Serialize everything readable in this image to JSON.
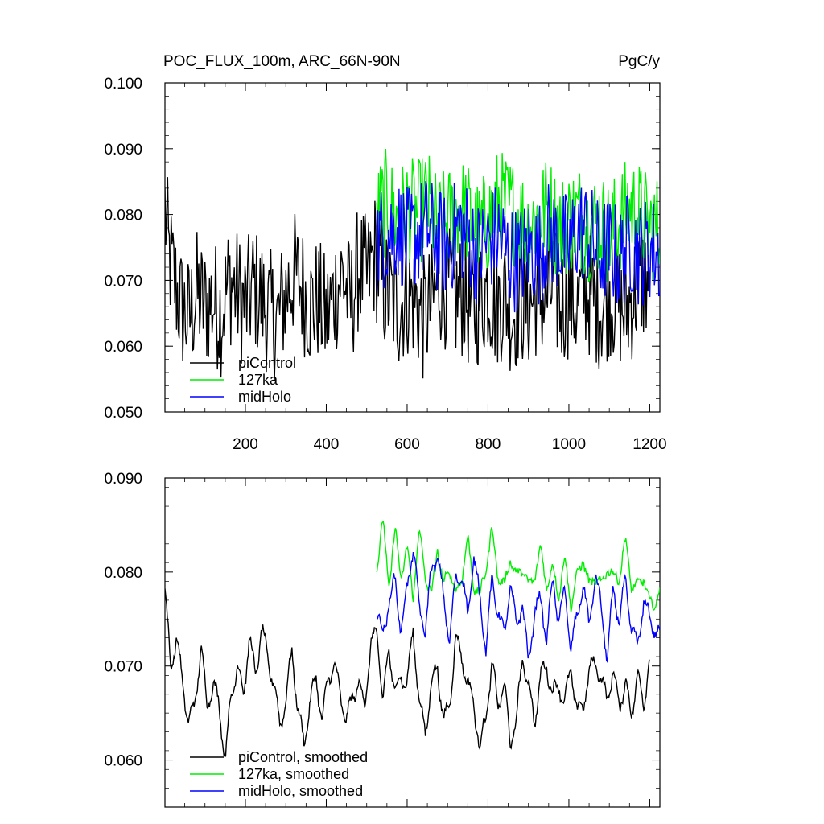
{
  "chart_data": [
    {
      "type": "line",
      "title": "POC_FLUX_100m, ARC_66N-90N",
      "units": "PgC/y",
      "xlim": [
        1,
        1225
      ],
      "ylim": [
        0.05,
        0.1
      ],
      "x_ticks": [
        200,
        400,
        600,
        800,
        1000,
        1200
      ],
      "y_ticks": [
        "0.050",
        "0.060",
        "0.070",
        "0.080",
        "0.090",
        "0.100"
      ],
      "legend": [
        "piControl",
        "127ka",
        "midHolo"
      ],
      "legend_position": "bottom-left",
      "series": [
        {
          "name": "piControl",
          "color": "#000000",
          "x_start": 1,
          "x_end": 1200,
          "x": [
            1,
            10,
            20,
            40,
            60,
            80,
            100,
            120,
            140,
            160,
            180,
            200,
            220,
            240,
            260,
            280,
            300,
            320,
            340,
            360,
            380,
            400,
            420,
            440,
            460,
            480,
            500,
            520,
            540,
            560,
            580,
            600,
            620,
            640,
            660,
            680,
            700,
            720,
            740,
            760,
            780,
            800,
            820,
            840,
            860,
            880,
            900,
            920,
            940,
            960,
            980,
            1000,
            1020,
            1040,
            1060,
            1080,
            1100,
            1120,
            1140,
            1160,
            1180,
            1200
          ],
          "values": [
            0.081,
            0.074,
            0.071,
            0.066,
            0.064,
            0.068,
            0.066,
            0.067,
            0.065,
            0.07,
            0.068,
            0.066,
            0.069,
            0.067,
            0.065,
            0.064,
            0.068,
            0.071,
            0.069,
            0.066,
            0.067,
            0.064,
            0.068,
            0.071,
            0.066,
            0.072,
            0.07,
            0.074,
            0.069,
            0.067,
            0.066,
            0.068,
            0.067,
            0.064,
            0.066,
            0.07,
            0.069,
            0.067,
            0.068,
            0.065,
            0.067,
            0.069,
            0.066,
            0.068,
            0.065,
            0.067,
            0.066,
            0.068,
            0.067,
            0.069,
            0.066,
            0.068,
            0.066,
            0.069,
            0.067,
            0.066,
            0.068,
            0.067,
            0.065,
            0.068,
            0.07,
            0.07
          ]
        },
        {
          "name": "127ka",
          "color": "#00ee00",
          "x_start": 525,
          "x_end": 1225,
          "x": [
            525,
            550,
            575,
            600,
            625,
            650,
            675,
            700,
            725,
            750,
            775,
            800,
            825,
            850,
            875,
            900,
            925,
            950,
            975,
            1000,
            1025,
            1050,
            1075,
            1100,
            1125,
            1150,
            1175,
            1200,
            1225
          ],
          "values": [
            0.08,
            0.082,
            0.079,
            0.081,
            0.08,
            0.082,
            0.078,
            0.079,
            0.081,
            0.08,
            0.077,
            0.079,
            0.082,
            0.081,
            0.08,
            0.078,
            0.08,
            0.081,
            0.078,
            0.079,
            0.08,
            0.078,
            0.079,
            0.077,
            0.079,
            0.081,
            0.08,
            0.078,
            0.078
          ]
        },
        {
          "name": "midHolo",
          "color": "#0000ff",
          "x_start": 525,
          "x_end": 1225,
          "x": [
            525,
            550,
            575,
            600,
            625,
            650,
            675,
            700,
            725,
            750,
            775,
            800,
            825,
            850,
            875,
            900,
            925,
            950,
            975,
            1000,
            1025,
            1050,
            1075,
            1100,
            1125,
            1150,
            1175,
            1200,
            1225
          ],
          "values": [
            0.076,
            0.077,
            0.078,
            0.076,
            0.077,
            0.078,
            0.076,
            0.075,
            0.078,
            0.077,
            0.074,
            0.076,
            0.077,
            0.074,
            0.073,
            0.075,
            0.074,
            0.077,
            0.076,
            0.075,
            0.078,
            0.077,
            0.074,
            0.075,
            0.073,
            0.076,
            0.074,
            0.075,
            0.074
          ]
        }
      ]
    },
    {
      "type": "line",
      "xlim": [
        1,
        1225
      ],
      "ylim": [
        0.055,
        0.09
      ],
      "y_ticks": [
        "0.060",
        "0.070",
        "0.080",
        "0.090"
      ],
      "legend": [
        "piControl, smoothed",
        "127ka, smoothed",
        "midHolo, smoothed"
      ],
      "legend_position": "bottom-left",
      "series": [
        {
          "name": "piControl, smoothed",
          "color": "#000000",
          "x": [
            1,
            15,
            30,
            45,
            60,
            75,
            90,
            105,
            120,
            135,
            150,
            165,
            180,
            195,
            210,
            225,
            240,
            255,
            270,
            285,
            300,
            315,
            330,
            345,
            360,
            375,
            390,
            405,
            420,
            435,
            450,
            465,
            480,
            495,
            510,
            525,
            540,
            555,
            570,
            585,
            600,
            615,
            630,
            645,
            660,
            675,
            690,
            705,
            720,
            735,
            750,
            765,
            780,
            795,
            810,
            825,
            840,
            855,
            870,
            885,
            900,
            915,
            930,
            945,
            960,
            975,
            990,
            1005,
            1020,
            1035,
            1050,
            1065,
            1080,
            1095,
            1110,
            1125,
            1140,
            1155,
            1170,
            1185,
            1200
          ],
          "values": [
            0.078,
            0.07,
            0.073,
            0.068,
            0.064,
            0.066,
            0.072,
            0.066,
            0.068,
            0.066,
            0.06,
            0.067,
            0.07,
            0.067,
            0.073,
            0.069,
            0.074,
            0.071,
            0.068,
            0.064,
            0.066,
            0.072,
            0.065,
            0.062,
            0.066,
            0.069,
            0.064,
            0.069,
            0.07,
            0.067,
            0.064,
            0.067,
            0.068,
            0.066,
            0.072,
            0.074,
            0.066,
            0.072,
            0.067,
            0.069,
            0.068,
            0.074,
            0.066,
            0.063,
            0.068,
            0.07,
            0.064,
            0.066,
            0.073,
            0.071,
            0.068,
            0.066,
            0.061,
            0.065,
            0.07,
            0.066,
            0.068,
            0.062,
            0.064,
            0.071,
            0.068,
            0.064,
            0.069,
            0.07,
            0.067,
            0.068,
            0.066,
            0.07,
            0.065,
            0.066,
            0.069,
            0.071,
            0.068,
            0.067,
            0.069,
            0.066,
            0.068,
            0.065,
            0.069,
            0.066,
            0.071
          ]
        },
        {
          "name": "127ka, smoothed",
          "color": "#00ee00",
          "x": [
            525,
            540,
            555,
            570,
            585,
            600,
            615,
            630,
            645,
            660,
            675,
            690,
            705,
            720,
            735,
            750,
            765,
            780,
            795,
            810,
            825,
            840,
            855,
            870,
            885,
            900,
            915,
            930,
            945,
            960,
            975,
            990,
            1005,
            1020,
            1035,
            1050,
            1065,
            1080,
            1095,
            1110,
            1125,
            1140,
            1155,
            1170,
            1185,
            1200,
            1225
          ],
          "values": [
            0.081,
            0.085,
            0.079,
            0.084,
            0.08,
            0.082,
            0.078,
            0.084,
            0.08,
            0.077,
            0.083,
            0.078,
            0.081,
            0.077,
            0.08,
            0.083,
            0.079,
            0.077,
            0.081,
            0.084,
            0.08,
            0.078,
            0.082,
            0.079,
            0.081,
            0.078,
            0.08,
            0.082,
            0.079,
            0.08,
            0.078,
            0.081,
            0.077,
            0.079,
            0.082,
            0.078,
            0.08,
            0.078,
            0.081,
            0.079,
            0.08,
            0.083,
            0.079,
            0.078,
            0.08,
            0.076,
            0.078
          ]
        },
        {
          "name": "midHolo, smoothed",
          "color": "#0000ff",
          "x": [
            525,
            540,
            555,
            570,
            585,
            600,
            615,
            630,
            645,
            660,
            675,
            690,
            705,
            720,
            735,
            750,
            765,
            780,
            795,
            810,
            825,
            840,
            855,
            870,
            885,
            900,
            915,
            930,
            945,
            960,
            975,
            990,
            1005,
            1020,
            1035,
            1050,
            1065,
            1080,
            1095,
            1110,
            1125,
            1140,
            1155,
            1170,
            1185,
            1200,
            1225
          ],
          "values": [
            0.076,
            0.073,
            0.077,
            0.079,
            0.074,
            0.078,
            0.083,
            0.076,
            0.074,
            0.08,
            0.082,
            0.077,
            0.073,
            0.079,
            0.08,
            0.075,
            0.082,
            0.077,
            0.072,
            0.079,
            0.076,
            0.073,
            0.079,
            0.074,
            0.077,
            0.07,
            0.076,
            0.077,
            0.073,
            0.079,
            0.075,
            0.078,
            0.072,
            0.075,
            0.079,
            0.074,
            0.08,
            0.076,
            0.071,
            0.078,
            0.075,
            0.079,
            0.074,
            0.072,
            0.077,
            0.075,
            0.073
          ]
        }
      ]
    }
  ]
}
